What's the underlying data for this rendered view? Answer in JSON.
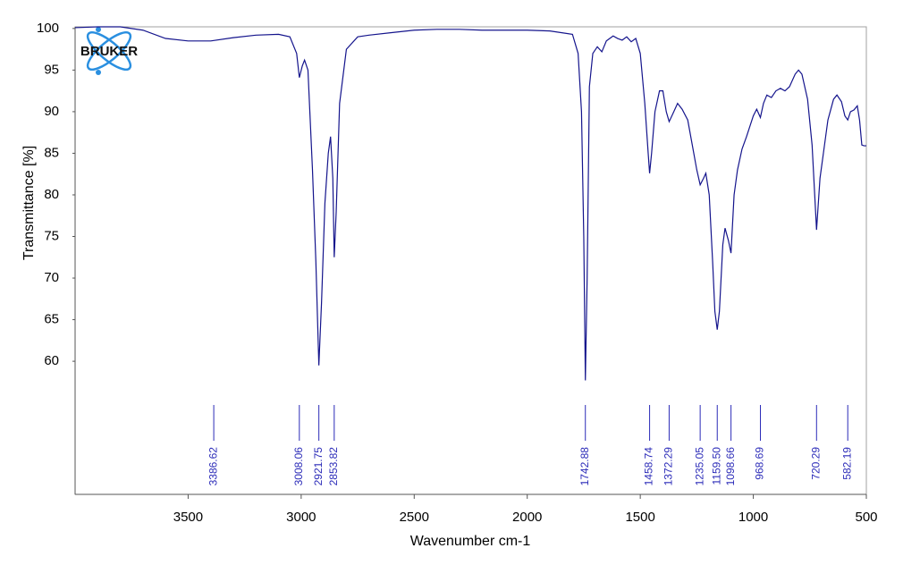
{
  "chart_data": {
    "type": "line",
    "xlabel": "Wavenumber cm-1",
    "ylabel": "Transmittance [%]",
    "logo": "BRUKER",
    "color": "#14148c",
    "peak_color": "#2b2bb8",
    "xlim": [
      4000,
      500
    ],
    "ylim": [
      44,
      100.2
    ],
    "xticks": [
      3500,
      3000,
      2500,
      2000,
      1500,
      1000,
      500
    ],
    "yticks": [
      60,
      65,
      70,
      75,
      80,
      85,
      90,
      95,
      100
    ],
    "x": [
      4000,
      3900,
      3800,
      3700,
      3600,
      3500,
      3400,
      3300,
      3200,
      3100,
      3050,
      3020,
      3008,
      2995,
      2985,
      2970,
      2950,
      2935,
      2921.75,
      2910,
      2895,
      2880,
      2870,
      2860,
      2853.82,
      2845,
      2830,
      2800,
      2750,
      2700,
      2600,
      2500,
      2400,
      2300,
      2200,
      2100,
      2000,
      1900,
      1800,
      1775,
      1760,
      1750,
      1742.88,
      1735,
      1725,
      1710,
      1690,
      1670,
      1650,
      1620,
      1600,
      1580,
      1560,
      1540,
      1520,
      1500,
      1480,
      1465,
      1458.74,
      1450,
      1435,
      1415,
      1400,
      1385,
      1372.29,
      1355,
      1335,
      1315,
      1290,
      1270,
      1250,
      1235.05,
      1220,
      1210,
      1195,
      1180,
      1170,
      1159.5,
      1150,
      1135,
      1125,
      1110,
      1098.66,
      1085,
      1070,
      1050,
      1030,
      1000,
      985,
      968.69,
      955,
      940,
      920,
      900,
      880,
      860,
      840,
      815,
      800,
      785,
      760,
      740,
      720.29,
      705,
      690,
      670,
      645,
      630,
      610,
      595,
      582.19,
      570,
      555,
      540,
      530,
      520,
      510,
      500
    ],
    "values": [
      100.1,
      100.2,
      100.2,
      99.8,
      98.8,
      98.5,
      98.5,
      98.9,
      99.2,
      99.3,
      99.0,
      97,
      94.1,
      95.5,
      96.2,
      95,
      83,
      72,
      59.5,
      67,
      79,
      85,
      87,
      82,
      72.5,
      78,
      91,
      97.5,
      99,
      99.2,
      99.5,
      99.8,
      99.9,
      99.9,
      99.8,
      99.8,
      99.8,
      99.7,
      99.3,
      97,
      90,
      75,
      57.7,
      70,
      93,
      97,
      97.8,
      97.2,
      98.5,
      99.1,
      98.8,
      98.6,
      99,
      98.4,
      98.8,
      97,
      91,
      85,
      82.6,
      85,
      90,
      92.5,
      92.5,
      90,
      88.8,
      89.8,
      91,
      90.3,
      89,
      86,
      83,
      81.2,
      82,
      82.6,
      80,
      72,
      66,
      63.8,
      66,
      74,
      76,
      74.5,
      73,
      80,
      83,
      85.5,
      87,
      89.5,
      90.3,
      89.3,
      91,
      92,
      91.7,
      92.5,
      92.8,
      92.5,
      93,
      94.5,
      95,
      94.5,
      91.5,
      86,
      75.8,
      82,
      85,
      89,
      91.5,
      92,
      91.2,
      89.5,
      89,
      90,
      90.2,
      90.7,
      89,
      86,
      85.9,
      85.9
    ],
    "peaks": [
      3386.62,
      3008.06,
      2921.75,
      2853.82,
      1742.88,
      1458.74,
      1372.29,
      1235.05,
      {
        "value": 1159.5,
        "label": "1159.50"
      },
      1098.66,
      968.69,
      720.29,
      582.19
    ]
  }
}
